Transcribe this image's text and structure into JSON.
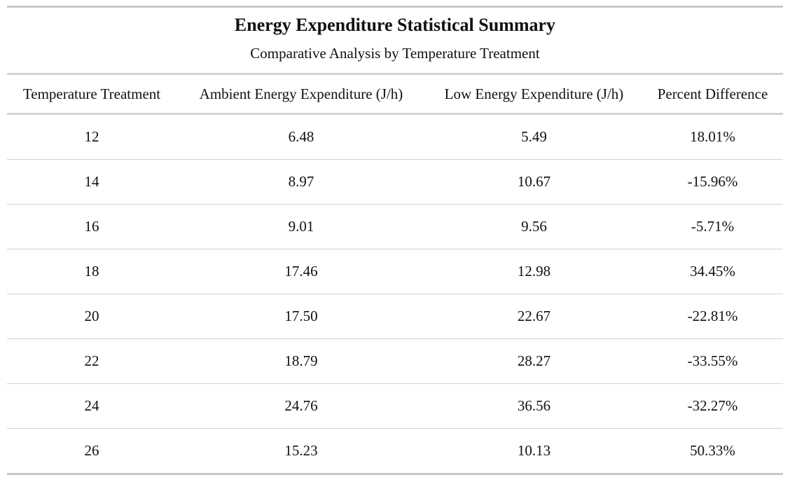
{
  "title": "Energy Expenditure Statistical Summary",
  "subtitle": "Comparative Analysis by Temperature Treatment",
  "columns": [
    "Temperature Treatment",
    "Ambient Energy Expenditure (J/h)",
    "Low Energy Expenditure (J/h)",
    "Percent Difference"
  ],
  "rows": [
    [
      "12",
      "6.48",
      "5.49",
      "18.01%"
    ],
    [
      "14",
      "8.97",
      "10.67",
      "-15.96%"
    ],
    [
      "16",
      "9.01",
      "9.56",
      "-5.71%"
    ],
    [
      "18",
      "17.46",
      "12.98",
      "34.45%"
    ],
    [
      "20",
      "17.50",
      "22.67",
      "-22.81%"
    ],
    [
      "22",
      "18.79",
      "28.27",
      "-33.55%"
    ],
    [
      "24",
      "24.76",
      "36.56",
      "-32.27%"
    ],
    [
      "26",
      "15.23",
      "10.13",
      "50.33%"
    ]
  ],
  "chart_data": {
    "type": "table",
    "title": "Energy Expenditure Statistical Summary",
    "subtitle": "Comparative Analysis by Temperature Treatment",
    "columns": [
      "Temperature Treatment",
      "Ambient Energy Expenditure (J/h)",
      "Low Energy Expenditure (J/h)",
      "Percent Difference"
    ],
    "x": [
      12,
      14,
      16,
      18,
      20,
      22,
      24,
      26
    ],
    "series": [
      {
        "name": "Ambient Energy Expenditure (J/h)",
        "values": [
          6.48,
          8.97,
          9.01,
          17.46,
          17.5,
          18.79,
          24.76,
          15.23
        ]
      },
      {
        "name": "Low Energy Expenditure (J/h)",
        "values": [
          5.49,
          10.67,
          9.56,
          12.98,
          22.67,
          28.27,
          36.56,
          10.13
        ]
      },
      {
        "name": "Percent Difference",
        "values": [
          18.01,
          -15.96,
          -5.71,
          34.45,
          -22.81,
          -33.55,
          -32.27,
          50.33
        ]
      }
    ]
  }
}
